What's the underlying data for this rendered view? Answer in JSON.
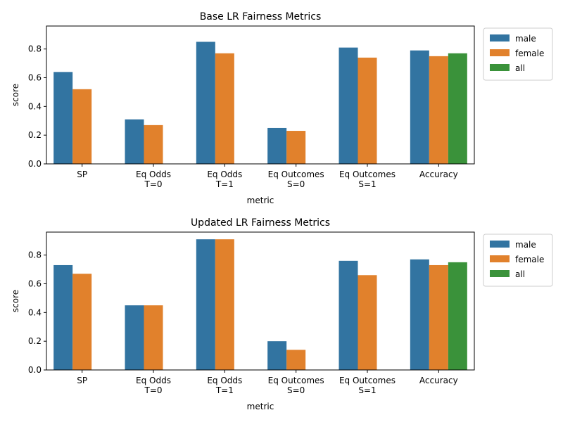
{
  "colors": {
    "male": "#3274a1",
    "female": "#e1812c",
    "all": "#3a923a"
  },
  "chart_data": [
    {
      "type": "bar",
      "title": "Base LR Fairness Metrics",
      "xlabel": "metric",
      "ylabel": "score",
      "ylim": [
        0,
        0.96
      ],
      "yticks": [
        "0.0",
        "0.2",
        "0.4",
        "0.6",
        "0.8"
      ],
      "categories": [
        [
          "SP"
        ],
        [
          "Eq Odds",
          "T=0"
        ],
        [
          "Eq Odds",
          "T=1"
        ],
        [
          "Eq Outcomes",
          "S=0"
        ],
        [
          "Eq Outcomes",
          "S=1"
        ],
        [
          "Accuracy"
        ]
      ],
      "series": [
        {
          "name": "male",
          "values": [
            0.64,
            0.31,
            0.85,
            0.25,
            0.81,
            0.79
          ]
        },
        {
          "name": "female",
          "values": [
            0.52,
            0.27,
            0.77,
            0.23,
            0.74,
            0.75
          ]
        },
        {
          "name": "all",
          "values": [
            null,
            null,
            null,
            null,
            null,
            0.77
          ]
        }
      ],
      "legend": "outside-top-right"
    },
    {
      "type": "bar",
      "title": "Updated LR Fairness Metrics",
      "xlabel": "metric",
      "ylabel": "score",
      "ylim": [
        0,
        0.96
      ],
      "yticks": [
        "0.0",
        "0.2",
        "0.4",
        "0.6",
        "0.8"
      ],
      "categories": [
        [
          "SP"
        ],
        [
          "Eq Odds",
          "T=0"
        ],
        [
          "Eq Odds",
          "T=1"
        ],
        [
          "Eq Outcomes",
          "S=0"
        ],
        [
          "Eq Outcomes",
          "S=1"
        ],
        [
          "Accuracy"
        ]
      ],
      "series": [
        {
          "name": "male",
          "values": [
            0.73,
            0.45,
            0.91,
            0.2,
            0.76,
            0.77
          ]
        },
        {
          "name": "female",
          "values": [
            0.67,
            0.45,
            0.91,
            0.14,
            0.66,
            0.73
          ]
        },
        {
          "name": "all",
          "values": [
            null,
            null,
            null,
            null,
            null,
            0.75
          ]
        }
      ],
      "legend": "outside-top-right"
    }
  ]
}
